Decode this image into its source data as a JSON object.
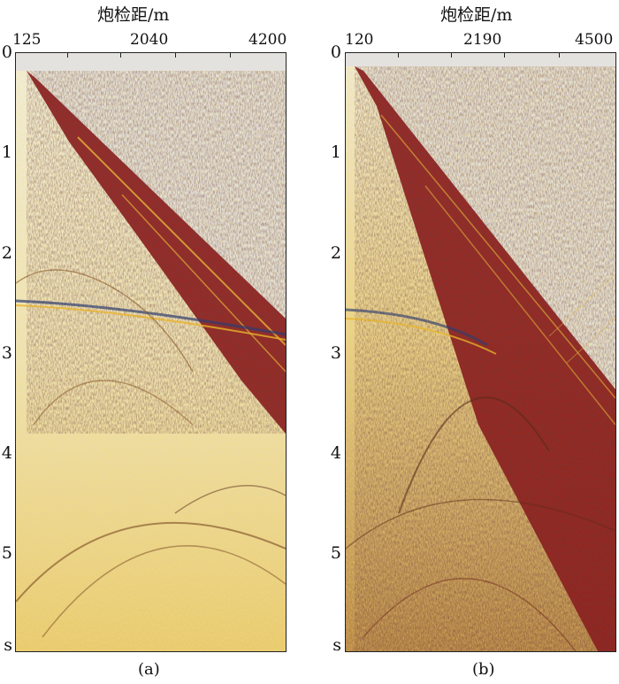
{
  "panels": [
    {
      "id": "a",
      "caption": "(a)",
      "x_title": "炮检距/m",
      "x_ticks": [
        "125",
        "2040",
        "4200"
      ],
      "y_ticks": [
        "0",
        "1",
        "2",
        "3",
        "4",
        "5",
        "s"
      ]
    },
    {
      "id": "b",
      "caption": "(b)",
      "x_title": "炮检距/m",
      "x_ticks": [
        "120",
        "2190",
        "4500"
      ],
      "y_ticks": [
        "0",
        "1",
        "2",
        "3",
        "4",
        "5",
        "s"
      ]
    }
  ],
  "colors": {
    "background_gray": "#e4e2df",
    "wavefield_yellow": "#e8c14a",
    "wavefield_red": "#8e1b1b",
    "wavefield_blue": "#3a4f8c"
  }
}
